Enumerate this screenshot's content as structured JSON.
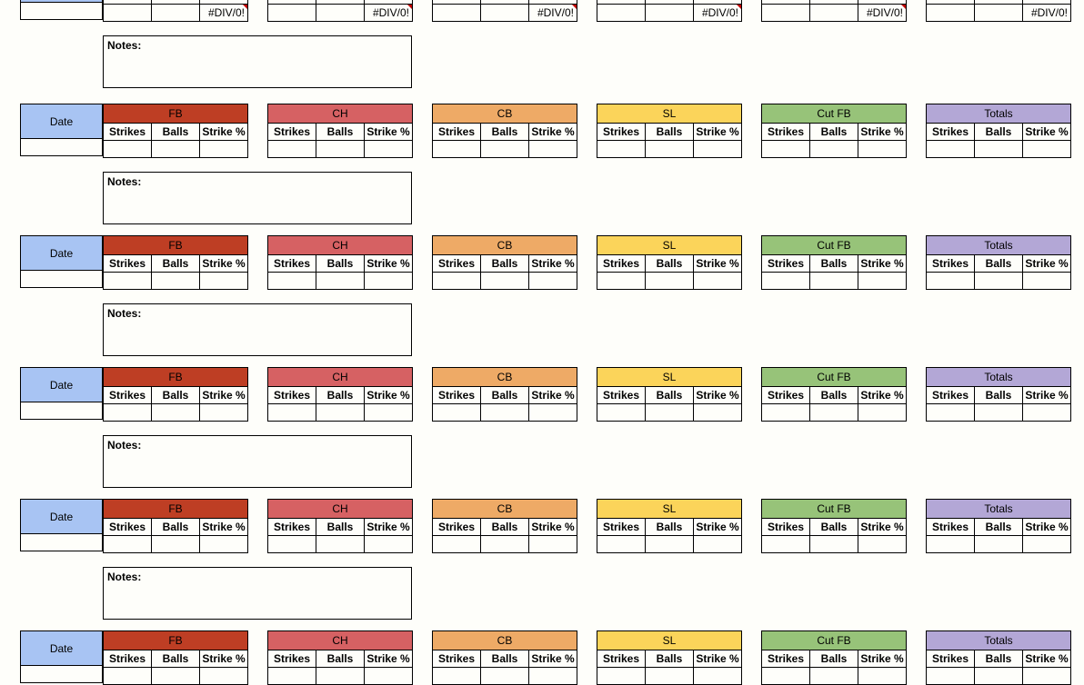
{
  "date_label": "Date",
  "notes_label": "Notes:",
  "col_headers": [
    "Strikes",
    "Balls",
    "Strike %"
  ],
  "error_value": "#DIV/0!",
  "pitches": [
    {
      "name": "FB",
      "color": "#be3e24",
      "text_color": "#000000"
    },
    {
      "name": "CH",
      "color": "#d66163",
      "text_color": "#000000"
    },
    {
      "name": "CB",
      "color": "#eeaa66",
      "text_color": "#000000"
    },
    {
      "name": "SL",
      "color": "#fbd45a",
      "text_color": "#000000"
    },
    {
      "name": "Cut FB",
      "color": "#97c379",
      "text_color": "#000000"
    },
    {
      "name": "Totals",
      "color": "#b3a7d6",
      "text_color": "#000000"
    }
  ]
}
